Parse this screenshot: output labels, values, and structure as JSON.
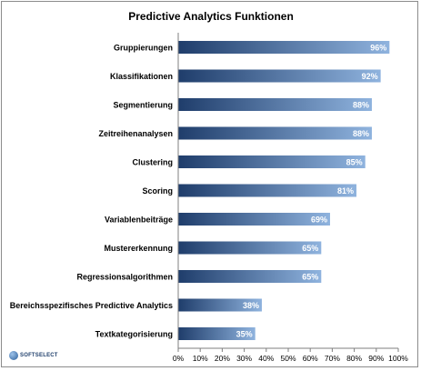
{
  "chart_data": {
    "type": "bar",
    "orientation": "horizontal",
    "title": "Predictive Analytics Funktionen",
    "categories": [
      "Gruppierungen",
      "Klassifikationen",
      "Segmentierung",
      "Zeitreihenanalysen",
      "Clustering",
      "Scoring",
      "Variablenbeiträge",
      "Mustererkennung",
      "Regressionsalgorithmen",
      "Bereichsspezifisches Predictive Analytics",
      "Textkategorisierung"
    ],
    "values": [
      96,
      92,
      88,
      88,
      85,
      81,
      69,
      65,
      65,
      38,
      35
    ],
    "data_labels": [
      "96%",
      "92%",
      "88%",
      "88%",
      "85%",
      "81%",
      "69%",
      "65%",
      "65%",
      "38%",
      "35%"
    ],
    "xlim": [
      0,
      100
    ],
    "x_ticks": [
      "0%",
      "10%",
      "20%",
      "30%",
      "40%",
      "50%",
      "60%",
      "70%",
      "80%",
      "90%",
      "100%"
    ],
    "grid": false,
    "legend": "none",
    "bar_color_dark": "#1f3d6b",
    "bar_color_light": "#8fb3de"
  },
  "logo": {
    "text": "SOFTSELECT"
  }
}
